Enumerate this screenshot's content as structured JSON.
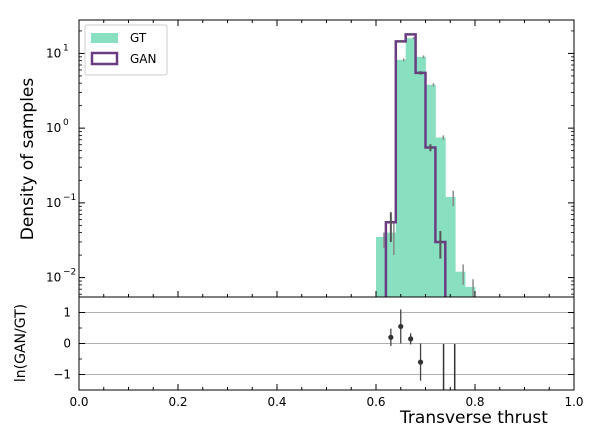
{
  "chart_data": [
    {
      "type": "histogram",
      "ylabel": "Density of samples",
      "yscale": "log",
      "ylim": [
        0.0055,
        28
      ],
      "xlim": [
        0.0,
        1.0
      ],
      "yticks": [
        {
          "value": 10,
          "label": "10"
        },
        {
          "value": 1,
          "label": "10"
        },
        {
          "value": 0.1,
          "label": "10"
        },
        {
          "value": 0.01,
          "label": "10"
        }
      ],
      "ytick_exponents": [
        "1",
        "0",
        "−1",
        "−2"
      ],
      "bin_edges": [
        0.6,
        0.62,
        0.64,
        0.66,
        0.68,
        0.7,
        0.72,
        0.74,
        0.76,
        0.78,
        0.8
      ],
      "legend": {
        "placement": "top-left"
      },
      "series": [
        {
          "name": "GT",
          "style": "filled",
          "color": "#88e0c0",
          "values": [
            0.035,
            0.04,
            8.2,
            16.0,
            9.0,
            3.8,
            0.75,
            0.12,
            0.012,
            0.0075
          ],
          "errors": [
            [
              0.01,
              0.005
            ],
            [
              0.02,
              0.015
            ],
            [
              0.35,
              0.35
            ],
            [
              0.5,
              0.5
            ],
            [
              0.4,
              0.4
            ],
            [
              0.2,
              0.2
            ],
            [
              0.05,
              0.05
            ],
            [
              0.03,
              0.025
            ],
            [
              0.004,
              0.003
            ],
            [
              0.003,
              0.002
            ]
          ]
        },
        {
          "name": "GAN",
          "style": "step",
          "color": "#6a3d82",
          "values": [
            null,
            0.055,
            14.5,
            18.0,
            5.5,
            0.55,
            0.03,
            null,
            null,
            null
          ],
          "errors": [
            [
              0,
              0
            ],
            [
              0.025,
              0.02
            ],
            [
              0.5,
              0.5
            ],
            [
              0.6,
              0.6
            ],
            [
              0.3,
              0.3
            ],
            [
              0.06,
              0.06
            ],
            [
              0.012,
              0.012
            ],
            [
              0,
              0
            ],
            [
              0,
              0
            ],
            [
              0,
              0
            ]
          ]
        }
      ]
    },
    {
      "type": "scatter",
      "ylabel": "ln(GAN/GT)",
      "xlabel": "Transverse thrust",
      "ylim": [
        -1.5,
        1.5
      ],
      "xlim": [
        0.0,
        1.0
      ],
      "xticks": [
        "0.0",
        "0.2",
        "0.4",
        "0.6",
        "0.8",
        "1.0"
      ],
      "yticks": [
        "1",
        "0",
        "−1"
      ],
      "gridlines": [
        1,
        0,
        -1
      ],
      "points": [
        {
          "x": 0.63,
          "y": 0.2,
          "err": 0.28
        },
        {
          "x": 0.65,
          "y": 0.55,
          "err": 0.55
        },
        {
          "x": 0.67,
          "y": 0.15,
          "err": 0.18
        },
        {
          "x": 0.69,
          "y": -0.6,
          "err": 0.6
        },
        {
          "x": 0.71,
          "y": null,
          "err": null
        },
        {
          "x": 0.73,
          "y": null,
          "err": null
        }
      ],
      "vertical_lines": [
        0.7365,
        0.759
      ]
    }
  ]
}
